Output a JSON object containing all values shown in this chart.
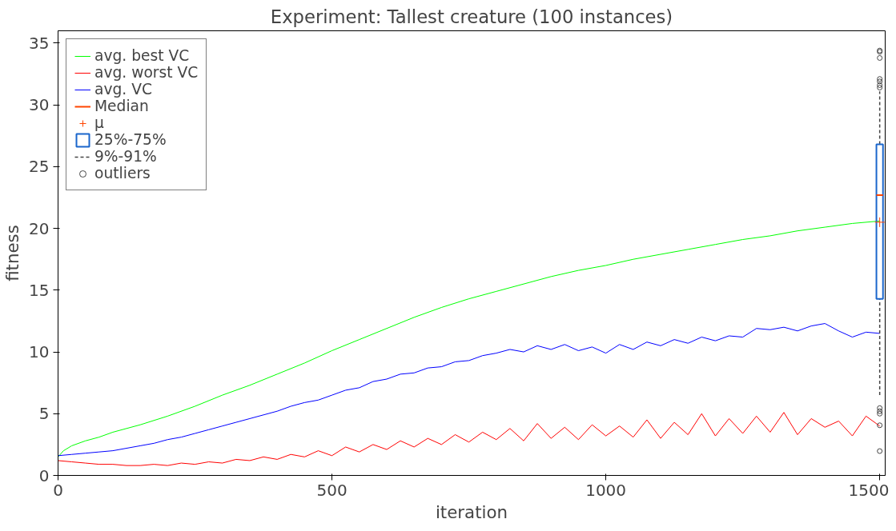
{
  "chart_data": {
    "type": "line",
    "title": "Experiment: Tallest creature (100 instances)",
    "xlabel": "iteration",
    "ylabel": "fitness",
    "xlim": [
      0,
      1510
    ],
    "ylim": [
      0,
      36
    ],
    "xticks": [
      0,
      500,
      1000,
      1500
    ],
    "yticks": [
      0,
      5,
      10,
      15,
      20,
      25,
      30,
      35
    ],
    "grid": false,
    "legend": "top left",
    "annotations": [
      "Median",
      "9%-91%"
    ],
    "series": [
      {
        "name": "avg. best VC",
        "color": "#00ff00",
        "x": [
          0,
          10,
          25,
          50,
          75,
          100,
          150,
          200,
          250,
          300,
          350,
          400,
          450,
          500,
          550,
          600,
          650,
          700,
          750,
          800,
          850,
          900,
          950,
          1000,
          1050,
          1100,
          1150,
          1200,
          1250,
          1300,
          1350,
          1400,
          1450,
          1500
        ],
        "values": [
          1.5,
          2.0,
          2.4,
          2.8,
          3.1,
          3.5,
          4.1,
          4.8,
          5.6,
          6.5,
          7.3,
          8.2,
          9.1,
          10.1,
          11.0,
          11.9,
          12.8,
          13.6,
          14.3,
          14.9,
          15.5,
          16.1,
          16.6,
          17.0,
          17.5,
          17.9,
          18.3,
          18.7,
          19.1,
          19.4,
          19.8,
          20.1,
          20.4,
          20.6
        ]
      },
      {
        "name": "avg. worst VC",
        "color": "#ff0000",
        "x": [
          0,
          25,
          50,
          75,
          100,
          125,
          150,
          175,
          200,
          225,
          250,
          275,
          300,
          325,
          350,
          375,
          400,
          425,
          450,
          475,
          500,
          525,
          550,
          575,
          600,
          625,
          650,
          675,
          700,
          725,
          750,
          775,
          800,
          825,
          850,
          875,
          900,
          925,
          950,
          975,
          1000,
          1025,
          1050,
          1075,
          1100,
          1125,
          1150,
          1175,
          1200,
          1225,
          1250,
          1275,
          1300,
          1325,
          1350,
          1375,
          1400,
          1425,
          1450,
          1475,
          1500
        ],
        "values": [
          1.2,
          1.1,
          1.0,
          0.9,
          0.9,
          0.8,
          0.8,
          0.9,
          0.8,
          1.0,
          0.9,
          1.1,
          1.0,
          1.3,
          1.2,
          1.5,
          1.3,
          1.7,
          1.5,
          2.0,
          1.6,
          2.3,
          1.9,
          2.5,
          2.1,
          2.8,
          2.3,
          3.0,
          2.5,
          3.3,
          2.7,
          3.5,
          2.9,
          3.8,
          2.8,
          4.2,
          3.0,
          3.9,
          2.9,
          4.1,
          3.2,
          4.0,
          3.1,
          4.5,
          3.0,
          4.3,
          3.3,
          5.0,
          3.2,
          4.6,
          3.4,
          4.8,
          3.5,
          5.1,
          3.3,
          4.6,
          3.9,
          4.4,
          3.2,
          4.8,
          4.0
        ]
      },
      {
        "name": "avg. VC",
        "color": "#0000ff",
        "x": [
          0,
          25,
          50,
          75,
          100,
          125,
          150,
          175,
          200,
          225,
          250,
          275,
          300,
          325,
          350,
          375,
          400,
          425,
          450,
          475,
          500,
          525,
          550,
          575,
          600,
          625,
          650,
          675,
          700,
          725,
          750,
          775,
          800,
          825,
          850,
          875,
          900,
          925,
          950,
          975,
          1000,
          1025,
          1050,
          1075,
          1100,
          1125,
          1150,
          1175,
          1200,
          1225,
          1250,
          1275,
          1300,
          1325,
          1350,
          1375,
          1400,
          1425,
          1450,
          1475,
          1500
        ],
        "values": [
          1.6,
          1.7,
          1.8,
          1.9,
          2.0,
          2.2,
          2.4,
          2.6,
          2.9,
          3.1,
          3.4,
          3.7,
          4.0,
          4.3,
          4.6,
          4.9,
          5.2,
          5.6,
          5.9,
          6.1,
          6.5,
          6.9,
          7.1,
          7.6,
          7.8,
          8.2,
          8.3,
          8.7,
          8.8,
          9.2,
          9.3,
          9.7,
          9.9,
          10.2,
          10.0,
          10.5,
          10.2,
          10.6,
          10.1,
          10.4,
          9.9,
          10.6,
          10.2,
          10.8,
          10.5,
          11.0,
          10.7,
          11.2,
          10.9,
          11.3,
          11.2,
          11.9,
          11.8,
          12.0,
          11.7,
          12.1,
          12.3,
          11.7,
          11.2,
          11.6,
          11.5
        ]
      },
      {
        "name": "25%-75%",
        "color": "#1a66cc",
        "type": "box",
        "x": [
          1500
        ],
        "boxes": [
          {
            "low": 6.5,
            "q1": 14.3,
            "median": 22.7,
            "q3": 26.8,
            "high": 31.1
          }
        ]
      },
      {
        "name": "μ",
        "color": "#ff4400",
        "type": "scatter",
        "marker": "cross",
        "x": [
          1500
        ],
        "values": [
          20.5
        ]
      },
      {
        "name": "outliers",
        "color": "#444444",
        "type": "scatter",
        "marker": "circle",
        "x": [
          1500,
          1500,
          1500,
          1500,
          1500,
          1500,
          1500,
          1500,
          1500,
          1500,
          1500,
          1500
        ],
        "values": [
          34.4,
          34.3,
          33.8,
          32.1,
          31.9,
          31.6,
          31.4,
          5.45,
          5.2,
          5.0,
          4.06,
          1.97
        ]
      }
    ]
  }
}
